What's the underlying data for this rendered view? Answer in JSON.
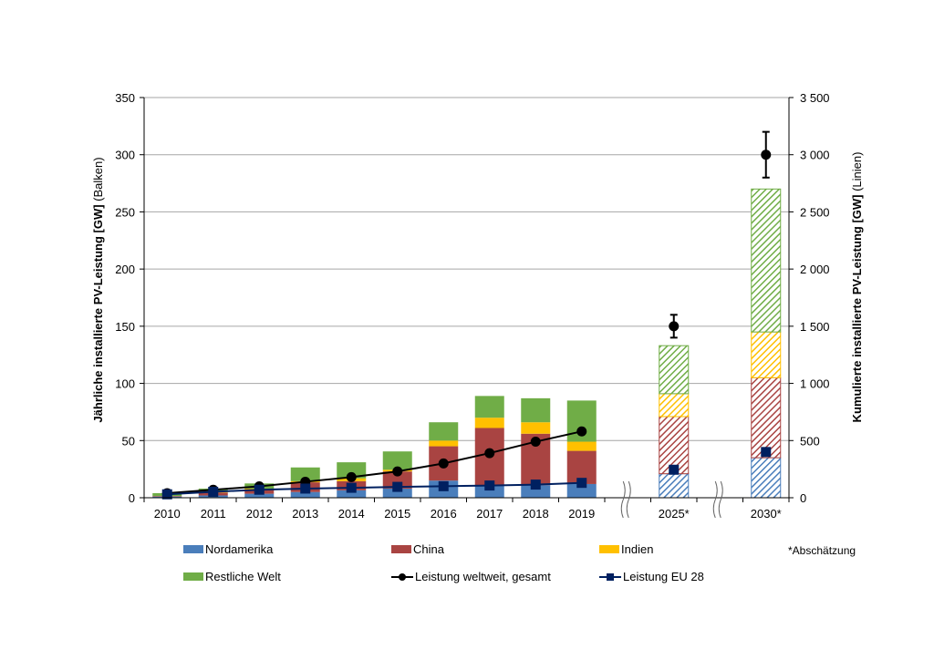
{
  "chart_data": {
    "type": "bar",
    "title": "",
    "categories": [
      "2010",
      "2011",
      "2012",
      "2013",
      "2014",
      "2015",
      "2016",
      "2017",
      "2018",
      "2019",
      "2025*",
      "2030*"
    ],
    "category_slots": [
      0,
      1,
      2,
      3,
      4,
      5,
      6,
      7,
      8,
      9,
      11,
      13
    ],
    "axis_breaks_between": [
      [
        "2019",
        "2025*"
      ],
      [
        "2025*",
        "2030*"
      ]
    ],
    "estimated_categories": [
      "2025*",
      "2030*"
    ],
    "ylabel_bold": "Jährliche installierte PV-Leistung [GW]",
    "ylabel_suffix": " (Balken)",
    "y2label_bold": "Kumulierte installierte PV-Leistung [GW]",
    "y2label_suffix": " (Linien)",
    "ylim": [
      0,
      350
    ],
    "yticks": [
      0,
      50,
      100,
      150,
      200,
      250,
      300,
      350
    ],
    "yticklabels": [
      "0",
      "50",
      "100",
      "150",
      "200",
      "250",
      "300",
      "350"
    ],
    "y2lim": [
      0,
      3500
    ],
    "y2ticks": [
      0,
      500,
      1000,
      1500,
      2000,
      2500,
      3000,
      3500
    ],
    "y2ticklabels": [
      "0",
      "500",
      "1 000",
      "1 500",
      "2 000",
      "2 500",
      "3 000",
      "3 500"
    ],
    "grid": true,
    "bar_series": [
      {
        "name": "Nordamerika",
        "color": "#4a7ebb",
        "values": [
          1,
          2,
          3.5,
          5,
          6.5,
          8,
          15,
          11,
          11,
          12,
          21,
          35
        ]
      },
      {
        "name": "China",
        "color": "#a94442",
        "values": [
          0.5,
          2.5,
          3.5,
          8.5,
          8,
          15,
          30,
          50,
          45,
          29,
          50,
          70
        ]
      },
      {
        "name": "Indien",
        "color": "#ffc000",
        "values": [
          0,
          0.5,
          1,
          1,
          2.5,
          1.5,
          5,
          9,
          10,
          8,
          20,
          40
        ]
      },
      {
        "name": "Restliche Welt",
        "color": "#70ad47",
        "values": [
          2.5,
          3,
          4.5,
          12,
          14,
          16,
          16,
          19,
          21,
          36,
          42,
          125
        ]
      }
    ],
    "line_series": [
      {
        "name": "Leistung weltweit, gesamt",
        "color": "#000000",
        "marker": "circle",
        "axis": "right",
        "values": [
          40,
          70,
          100,
          140,
          180,
          230,
          300,
          390,
          490,
          580,
          1500,
          3000
        ],
        "error_bars": {
          "2025*": [
            1400,
            1600
          ],
          "2030*": [
            2800,
            3200
          ]
        },
        "connected_through": "2019"
      },
      {
        "name": "Leistung EU 28",
        "color": "#002060",
        "marker": "square",
        "axis": "right",
        "values": [
          30,
          52,
          70,
          80,
          87,
          95,
          101,
          107,
          115,
          130,
          245,
          400
        ],
        "connected_through": "2019"
      }
    ],
    "legend_position": "bottom",
    "legend": [
      "Nordamerika",
      "China",
      "Indien",
      "Restliche Welt",
      "Leistung weltweit, gesamt",
      "Leistung EU 28"
    ],
    "annotation": "*Abschätzung"
  }
}
